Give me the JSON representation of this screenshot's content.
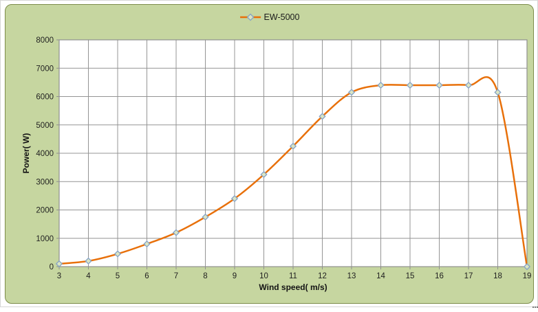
{
  "legend": {
    "label": "EW-5000"
  },
  "colors": {
    "chart_background": "#c6d6a0",
    "chart_border": "#7c8c4a",
    "plot_background": "#ffffff",
    "gridline": "#949494",
    "axis_line": "#8f8f8f",
    "series_line": "#e8700a",
    "marker_fill": "#dbe5c3",
    "marker_stroke": "#84a2c6",
    "tick_text": "#1f1f1f"
  },
  "chart_data": {
    "type": "line",
    "smooth": true,
    "marker": "diamond",
    "grid": true,
    "legend_position": "top-center",
    "title": "",
    "xlabel": "Wind speed( m/s)",
    "ylabel": "Power( W)",
    "xlim": [
      3,
      19
    ],
    "ylim": [
      0,
      8000
    ],
    "x_ticks": [
      3,
      4,
      5,
      6,
      7,
      8,
      9,
      10,
      11,
      12,
      13,
      14,
      15,
      16,
      17,
      18,
      19
    ],
    "y_ticks": [
      0,
      1000,
      2000,
      3000,
      4000,
      5000,
      6000,
      7000,
      8000
    ],
    "series": [
      {
        "name": "EW-5000",
        "x": [
          3,
          4,
          5,
          6,
          7,
          8,
          9,
          10,
          11,
          12,
          13,
          14,
          15,
          16,
          17,
          18,
          19
        ],
        "y": [
          100,
          200,
          450,
          800,
          1200,
          1750,
          2400,
          3250,
          4250,
          5300,
          6150,
          6400,
          6400,
          6400,
          6400,
          6150,
          0
        ]
      }
    ]
  }
}
